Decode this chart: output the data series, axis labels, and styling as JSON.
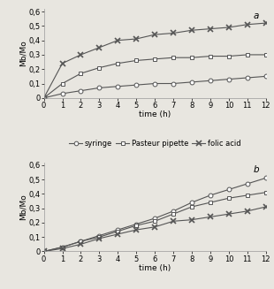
{
  "time": [
    0,
    1,
    2,
    3,
    4,
    5,
    6,
    7,
    8,
    9,
    10,
    11,
    12
  ],
  "panel_a": {
    "syringe": [
      0.0,
      0.03,
      0.05,
      0.07,
      0.08,
      0.09,
      0.1,
      0.1,
      0.11,
      0.12,
      0.13,
      0.14,
      0.15
    ],
    "pasteur_pipette": [
      0.0,
      0.1,
      0.17,
      0.21,
      0.24,
      0.26,
      0.27,
      0.28,
      0.28,
      0.29,
      0.29,
      0.3,
      0.3
    ],
    "folic_acid": [
      0.0,
      0.24,
      0.3,
      0.35,
      0.4,
      0.41,
      0.44,
      0.45,
      0.47,
      0.48,
      0.49,
      0.51,
      0.52
    ]
  },
  "panel_b": {
    "syringe": [
      0.0,
      0.03,
      0.07,
      0.11,
      0.15,
      0.19,
      0.23,
      0.28,
      0.34,
      0.39,
      0.43,
      0.47,
      0.51
    ],
    "pasteur_pipette": [
      0.0,
      0.03,
      0.07,
      0.1,
      0.14,
      0.18,
      0.21,
      0.26,
      0.31,
      0.34,
      0.37,
      0.39,
      0.41
    ],
    "folic_acid": [
      0.0,
      0.02,
      0.05,
      0.09,
      0.12,
      0.15,
      0.17,
      0.21,
      0.22,
      0.24,
      0.26,
      0.28,
      0.31
    ]
  },
  "ylabel": "Mb/Mo",
  "xlabel": "time (h)",
  "yticks": [
    0.0,
    0.1,
    0.2,
    0.3,
    0.4,
    0.5,
    0.6
  ],
  "ytick_labels": [
    "0",
    "0,1",
    "0,2",
    "0,3",
    "0,4",
    "0,5",
    "0,6"
  ],
  "xticks": [
    0,
    1,
    2,
    3,
    4,
    5,
    6,
    7,
    8,
    9,
    10,
    11,
    12
  ],
  "ylim": [
    0,
    0.62
  ],
  "xlim": [
    0,
    12
  ],
  "line_color": "#555555",
  "bg_color": "#e8e6e0",
  "marker_syringe": "o",
  "marker_pasteur": "s",
  "marker_folic": "x",
  "label_syringe": "syringe",
  "label_pasteur": "Pasteur pipette",
  "label_folic": "folic acid",
  "panel_a_label": "a",
  "panel_b_label": "b",
  "fontsize_tick": 6,
  "fontsize_label": 6.5,
  "fontsize_legend": 6,
  "fontsize_panel": 7.5
}
